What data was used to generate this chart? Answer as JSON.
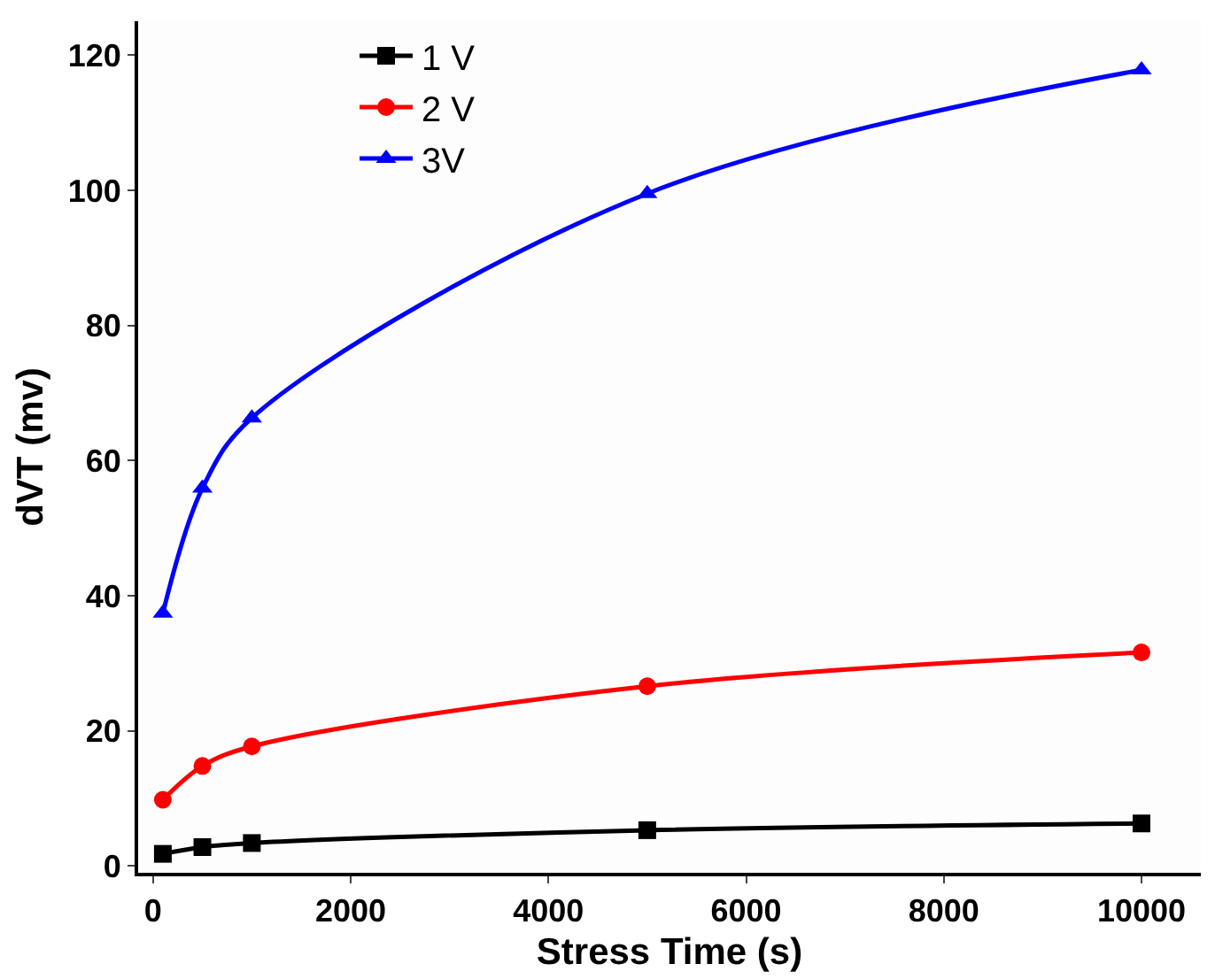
{
  "chart_data": {
    "type": "line",
    "xlabel": "Stress Time (s)",
    "ylabel": "dVT (mv)",
    "x": [
      100,
      500,
      1000,
      5000,
      10000
    ],
    "series": [
      {
        "name": "1 V",
        "color": "#000000",
        "marker": "square",
        "values": [
          1.8,
          2.8,
          3.4,
          5.3,
          6.3
        ]
      },
      {
        "name": "2 V",
        "color": "#ff0000",
        "marker": "circle",
        "values": [
          9.8,
          14.8,
          17.7,
          26.6,
          31.6
        ]
      },
      {
        "name": "3V",
        "color": "#0000ff",
        "marker": "triangle",
        "values": [
          37.4,
          55.9,
          66.3,
          99.5,
          117.8
        ]
      }
    ],
    "xlim": [
      -150,
      10600
    ],
    "xticks": [
      0,
      2000,
      4000,
      6000,
      8000,
      10000
    ],
    "ylim": [
      -1,
      125
    ],
    "yticks": [
      0,
      20,
      40,
      60,
      80,
      100,
      120
    ],
    "legend": "top left",
    "line_style": "solid"
  }
}
